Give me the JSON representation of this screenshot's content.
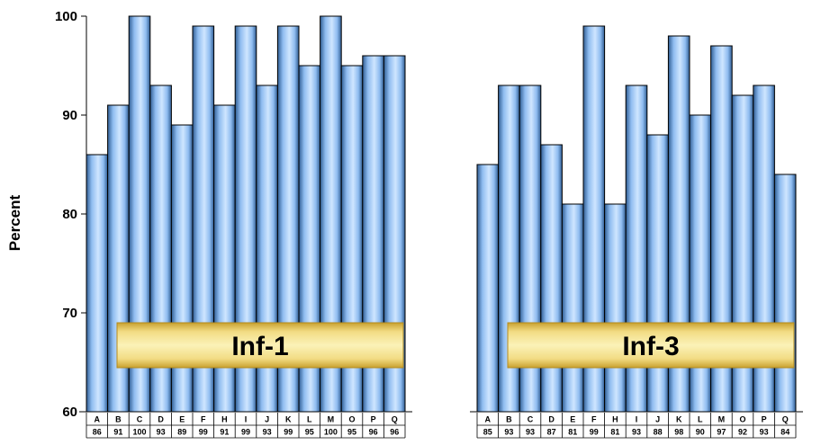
{
  "chart_data": {
    "type": "bar",
    "ylabel": "Percent",
    "ylim": [
      60,
      100
    ],
    "yticks": [
      60,
      70,
      80,
      90,
      100
    ],
    "grid": false,
    "colors": {
      "bar_light": "#cfe6ff",
      "bar_mid": "#8fbcf0",
      "bar_dark": "#2f5d93",
      "banner_light": "#fbf2b8",
      "banner_dark": "#c9a230"
    },
    "panels": [
      {
        "label": "Inf-1",
        "categories": [
          "A",
          "B",
          "C",
          "D",
          "E",
          "F",
          "H",
          "I",
          "J",
          "K",
          "L",
          "M",
          "O",
          "P",
          "Q"
        ],
        "values": [
          86,
          91,
          100,
          93,
          89,
          99,
          91,
          99,
          93,
          99,
          95,
          100,
          95,
          96,
          96
        ]
      },
      {
        "label": "Inf-3",
        "categories": [
          "A",
          "B",
          "C",
          "D",
          "E",
          "F",
          "H",
          "I",
          "J",
          "K",
          "L",
          "M",
          "O",
          "P",
          "Q"
        ],
        "values": [
          85,
          93,
          93,
          87,
          81,
          99,
          81,
          93,
          88,
          98,
          90,
          97,
          92,
          93,
          84
        ]
      }
    ]
  }
}
